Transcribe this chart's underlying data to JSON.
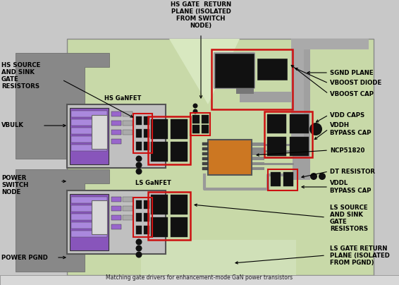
{
  "fig_width": 5.66,
  "fig_height": 4.04,
  "dpi": 100,
  "bg_color": "#c8c8c8",
  "board_bg": "#c8d9a8",
  "gray_dark": "#808080",
  "gray_med": "#a0a0a0",
  "gray_light": "#b8b8b8",
  "gray_trace": "#909090",
  "purple_dark": "#8855bb",
  "purple_light": "#aa88dd",
  "purple_pad": "#9966cc",
  "orange_ic": "#cc7722",
  "black_comp": "#111111",
  "red_border": "#cc1111",
  "white_inner": "#e8e8e8",
  "dark_line": "#333333",
  "title": "Matching gate drivers for enhancement-mode GaN power transistors",
  "labels": {
    "hs_gate_return": "HS GATE  RETURN\nPLANE (ISOLATED\nFROM SWITCH\nNODE)",
    "hs_source_sink": "HS SOURCE\nAND SINK\nGATE\nRESISTORS",
    "hs_ganfet": "HS GaNFET",
    "vbulk": "VBULK",
    "power_switch": "POWER\nSWITCH\nNODE",
    "power_pgnd": "POWER PGND",
    "ls_ganfet": "LS GaNFET",
    "sgnd_plane": "SGND PLANE",
    "vboost_diode": "VBOOST DIODE",
    "vboost_cap": "VBOOST CAP",
    "vdd_caps": "VDD CAPS",
    "vddh_bypass": "VDDH\nBYPASS CAP",
    "ncp51820": "NCP51820",
    "dt_resistor": "DT RESISTOR",
    "vddl_bypass": "VDDL\nBYPASS CAP",
    "ls_source_sink": "LS SOURCE\nAND SINK\nGATE\nRESISTORS",
    "ls_gate_return": "LS GATE RETURN\nPLANE (ISOLATED\nFROM PGND)"
  }
}
